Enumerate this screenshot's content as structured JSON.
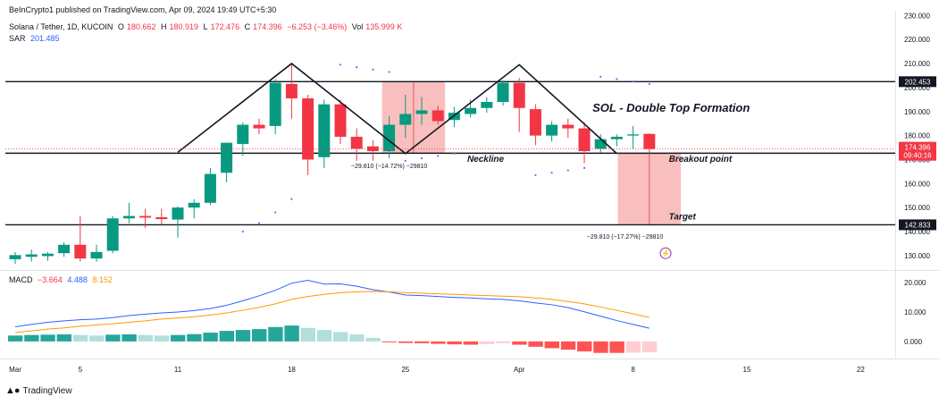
{
  "header": {
    "publisher": "BeInCrypto1 published on TradingView.com, Apr 09, 2024 19:49 UTC+5:30",
    "symbol": "Solana / Tether, 1D, KUCOIN",
    "o_label": "O",
    "o_value": "180.662",
    "h_label": "H",
    "h_value": "180.919",
    "l_label": "L",
    "l_value": "172.476",
    "c_label": "C",
    "c_value": "174.396",
    "change": "−6.253 (−3.46%)",
    "vol_label": "Vol",
    "vol_value": "135.999 K",
    "sar_label": "SAR",
    "sar_value": "201.485",
    "macd_label": "MACD",
    "macd_hist": "−3.664",
    "macd_line": "4.488",
    "macd_signal": "8.152"
  },
  "footer": {
    "brand": "TradingView"
  },
  "colors": {
    "up": "#089981",
    "down": "#f23645",
    "macd": "#2962ff",
    "signal": "#ff9800",
    "zone": "#f7a9a8"
  },
  "chart_data": [
    {
      "type": "candlestick",
      "title": "SOL - Double Top Formation",
      "ylim": [
        124,
        232
      ],
      "y_ticks": [
        130,
        140,
        150,
        160,
        170,
        180,
        190,
        200,
        210,
        220,
        230
      ],
      "y_tick_labels": [
        "130.000",
        "140.000",
        "150.000",
        "160.000",
        "170.000",
        "180.000",
        "190.000",
        "200.000",
        "210.000",
        "220.000",
        "230.000"
      ],
      "x_ticks": [
        {
          "day": 0,
          "label": "Mar"
        },
        {
          "day": 4,
          "label": "5"
        },
        {
          "day": 10,
          "label": "11"
        },
        {
          "day": 17,
          "label": "18"
        },
        {
          "day": 24,
          "label": "25"
        },
        {
          "day": 31,
          "label": "Apr"
        },
        {
          "day": 38,
          "label": "8"
        },
        {
          "day": 45,
          "label": "15"
        },
        {
          "day": 52,
          "label": "22"
        }
      ],
      "candles": [
        {
          "d": 0,
          "o": 128.5,
          "h": 131.5,
          "l": 126.5,
          "c": 130.2
        },
        {
          "d": 1,
          "o": 129.5,
          "h": 132.5,
          "l": 127.5,
          "c": 130.5
        },
        {
          "d": 2,
          "o": 129.8,
          "h": 131.5,
          "l": 127.8,
          "c": 130.8
        },
        {
          "d": 3,
          "o": 131.0,
          "h": 135.5,
          "l": 129.5,
          "c": 134.5
        },
        {
          "d": 4,
          "o": 134.5,
          "h": 146.5,
          "l": 127.5,
          "c": 128.8
        },
        {
          "d": 5,
          "o": 128.8,
          "h": 134.5,
          "l": 127.5,
          "c": 131.5
        },
        {
          "d": 6,
          "o": 132.0,
          "h": 146.5,
          "l": 131.0,
          "c": 145.5
        },
        {
          "d": 7,
          "o": 145.5,
          "h": 152.0,
          "l": 143.5,
          "c": 146.5
        },
        {
          "d": 8,
          "o": 146.5,
          "h": 149.5,
          "l": 141.5,
          "c": 145.8
        },
        {
          "d": 9,
          "o": 146.0,
          "h": 149.5,
          "l": 143.0,
          "c": 145.2
        },
        {
          "d": 10,
          "o": 145.0,
          "h": 150.5,
          "l": 137.5,
          "c": 150.0
        },
        {
          "d": 11,
          "o": 150.0,
          "h": 153.5,
          "l": 145.5,
          "c": 152.0
        },
        {
          "d": 12,
          "o": 152.0,
          "h": 166.5,
          "l": 151.0,
          "c": 164.0
        },
        {
          "d": 13,
          "o": 164.5,
          "h": 177.0,
          "l": 160.5,
          "c": 177.0
        },
        {
          "d": 14,
          "o": 176.5,
          "h": 185.5,
          "l": 171.5,
          "c": 184.5
        },
        {
          "d": 15,
          "o": 184.5,
          "h": 187.0,
          "l": 180.5,
          "c": 183.0
        },
        {
          "d": 16,
          "o": 184.0,
          "h": 203.5,
          "l": 180.5,
          "c": 202.0
        },
        {
          "d": 17,
          "o": 201.5,
          "h": 209.5,
          "l": 187.0,
          "c": 195.5
        },
        {
          "d": 18,
          "o": 195.5,
          "h": 197.0,
          "l": 163.5,
          "c": 170.0
        },
        {
          "d": 19,
          "o": 171.0,
          "h": 195.0,
          "l": 166.5,
          "c": 193.0
        },
        {
          "d": 20,
          "o": 193.0,
          "h": 195.0,
          "l": 176.5,
          "c": 179.5
        },
        {
          "d": 21,
          "o": 179.5,
          "h": 183.0,
          "l": 169.5,
          "c": 174.5
        },
        {
          "d": 22,
          "o": 175.5,
          "h": 178.0,
          "l": 169.5,
          "c": 173.5
        },
        {
          "d": 23,
          "o": 173.5,
          "h": 188.0,
          "l": 170.5,
          "c": 184.5
        },
        {
          "d": 24,
          "o": 184.5,
          "h": 197.0,
          "l": 179.0,
          "c": 189.0
        },
        {
          "d": 25,
          "o": 189.0,
          "h": 196.0,
          "l": 184.5,
          "c": 190.5
        },
        {
          "d": 26,
          "o": 190.5,
          "h": 192.5,
          "l": 184.5,
          "c": 186.0
        },
        {
          "d": 27,
          "o": 186.5,
          "h": 192.0,
          "l": 183.5,
          "c": 189.5
        },
        {
          "d": 28,
          "o": 189.0,
          "h": 195.0,
          "l": 187.5,
          "c": 191.5
        },
        {
          "d": 29,
          "o": 191.5,
          "h": 196.0,
          "l": 189.5,
          "c": 194.0
        },
        {
          "d": 30,
          "o": 194.0,
          "h": 203.0,
          "l": 192.5,
          "c": 202.0
        },
        {
          "d": 31,
          "o": 202.0,
          "h": 204.0,
          "l": 181.5,
          "c": 191.5
        },
        {
          "d": 32,
          "o": 191.0,
          "h": 193.0,
          "l": 176.0,
          "c": 180.0
        },
        {
          "d": 33,
          "o": 180.0,
          "h": 186.0,
          "l": 177.5,
          "c": 184.5
        },
        {
          "d": 34,
          "o": 184.5,
          "h": 187.0,
          "l": 179.0,
          "c": 183.0
        },
        {
          "d": 35,
          "o": 183.0,
          "h": 185.5,
          "l": 168.5,
          "c": 173.5
        },
        {
          "d": 36,
          "o": 174.5,
          "h": 180.5,
          "l": 173.0,
          "c": 178.5
        },
        {
          "d": 37,
          "o": 178.5,
          "h": 180.5,
          "l": 175.5,
          "c": 179.5
        },
        {
          "d": 38,
          "o": 180.0,
          "h": 184.0,
          "l": 174.5,
          "c": 180.5
        },
        {
          "d": 39,
          "o": 180.7,
          "h": 180.9,
          "l": 172.5,
          "c": 174.4
        }
      ],
      "sar": [
        {
          "d": 14,
          "v": 140.0
        },
        {
          "d": 15,
          "v": 143.5
        },
        {
          "d": 16,
          "v": 148.0
        },
        {
          "d": 17,
          "v": 153.5
        },
        {
          "d": 20,
          "v": 209.5
        },
        {
          "d": 21,
          "v": 208.5
        },
        {
          "d": 22,
          "v": 207.5
        },
        {
          "d": 23,
          "v": 206.5
        },
        {
          "d": 24,
          "v": 169.5
        },
        {
          "d": 25,
          "v": 170.5
        },
        {
          "d": 26,
          "v": 171.5
        },
        {
          "d": 27,
          "v": 172.5
        },
        {
          "d": 32,
          "v": 163.5
        },
        {
          "d": 33,
          "v": 164.5
        },
        {
          "d": 34,
          "v": 165.5
        },
        {
          "d": 35,
          "v": 166.5
        },
        {
          "d": 36,
          "v": 204.5
        },
        {
          "d": 37,
          "v": 203.5
        },
        {
          "d": 38,
          "v": 202.5
        },
        {
          "d": 39,
          "v": 201.5
        }
      ],
      "levels": [
        {
          "value": 202.453,
          "label": "202.453"
        },
        {
          "value": 172.643,
          "label": "172.643"
        },
        {
          "value": 142.833,
          "label": "142.833"
        }
      ],
      "last_price": {
        "value": 174.396,
        "label": "174.396",
        "countdown": "09:40:16"
      },
      "pattern": [
        {
          "d": 10,
          "v": 173.0
        },
        {
          "d": 17,
          "v": 210.0
        },
        {
          "d": 24,
          "v": 172.5
        },
        {
          "d": 31,
          "v": 209.5
        },
        {
          "d": 37,
          "v": 172.5
        }
      ],
      "measure_zones": [
        {
          "d1": 23,
          "d2": 26,
          "top": 202.453,
          "bottom": 172.643,
          "text": "−29.810 (−14.72%) −29810",
          "text_day": 23,
          "text_value": 166.5
        },
        {
          "d1": 37.5,
          "d2": 40.5,
          "top": 172.643,
          "bottom": 142.833,
          "text": "−29.810 (−17.27%) −29810",
          "text_day": 37.5,
          "text_value": 137.0
        }
      ],
      "annotations": [
        {
          "text": "SOL - Double Top Formation",
          "day": 35.5,
          "value": 190.0,
          "size": 13
        },
        {
          "text": "Neckline",
          "day": 27.8,
          "value": 169.0,
          "size": 10
        },
        {
          "text": "Breakout point",
          "day": 40.2,
          "value": 169.0,
          "size": 10
        },
        {
          "text": "Target",
          "day": 40.2,
          "value": 145.0,
          "size": 10
        }
      ]
    },
    {
      "type": "bar+line",
      "title": "MACD",
      "ylim": [
        -5.5,
        24
      ],
      "y_ticks": [
        0,
        10,
        20
      ],
      "y_tick_labels": [
        "0.000",
        "10.000",
        "20.000"
      ],
      "histogram": [
        2.0,
        2.2,
        2.3,
        2.4,
        2.2,
        2.0,
        2.3,
        2.4,
        2.2,
        2.0,
        2.2,
        2.5,
        3.0,
        3.6,
        3.9,
        4.2,
        4.9,
        5.4,
        4.6,
        3.9,
        3.2,
        2.4,
        1.2,
        -0.3,
        -0.5,
        -0.6,
        -0.8,
        -1.0,
        -1.1,
        -0.9,
        -0.6,
        -1.1,
        -1.8,
        -2.3,
        -2.8,
        -3.4,
        -3.9,
        -3.9,
        -3.8,
        -3.664
      ],
      "macd": [
        5.0,
        5.8,
        6.5,
        7.0,
        7.4,
        7.6,
        8.1,
        8.8,
        9.3,
        9.7,
        10.0,
        10.5,
        11.2,
        12.3,
        13.8,
        15.5,
        17.4,
        19.8,
        20.8,
        19.5,
        19.6,
        18.8,
        17.6,
        16.8,
        15.8,
        15.6,
        15.3,
        15.0,
        14.8,
        14.5,
        14.3,
        13.8,
        13.1,
        12.5,
        11.5,
        10.1,
        8.6,
        7.1,
        5.8,
        4.488
      ],
      "signal": [
        3.0,
        3.6,
        4.2,
        4.6,
        5.2,
        5.6,
        6.0,
        6.5,
        7.0,
        7.6,
        8.0,
        8.4,
        9.0,
        9.7,
        10.6,
        11.6,
        12.8,
        14.3,
        15.3,
        16.0,
        16.6,
        16.9,
        17.0,
        16.9,
        16.6,
        16.4,
        16.2,
        16.0,
        15.8,
        15.6,
        15.4,
        15.2,
        14.8,
        14.3,
        13.6,
        12.8,
        11.7,
        10.6,
        9.4,
        8.152
      ]
    }
  ]
}
